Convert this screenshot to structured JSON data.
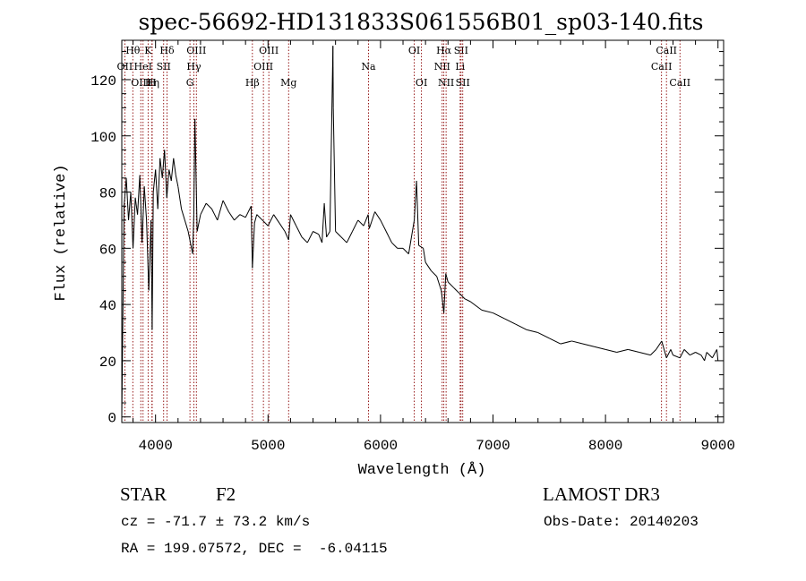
{
  "chart_data": {
    "type": "line",
    "title": "spec-56692-HD131833S061556B01_sp03-140.fits",
    "xlabel": "Wavelength (Å)",
    "ylabel": "Flux (relative)",
    "xlim": [
      3700,
      9050
    ],
    "ylim": [
      -2,
      134
    ],
    "xticks": [
      4000,
      5000,
      6000,
      7000,
      8000,
      9000
    ],
    "yticks": [
      0,
      20,
      40,
      60,
      80,
      100,
      120
    ],
    "series": [
      {
        "name": "flux",
        "x": [
          3700,
          3720,
          3740,
          3760,
          3780,
          3800,
          3820,
          3840,
          3860,
          3880,
          3900,
          3920,
          3940,
          3960,
          3970,
          3980,
          4000,
          4020,
          4040,
          4060,
          4080,
          4100,
          4120,
          4140,
          4160,
          4180,
          4200,
          4230,
          4260,
          4290,
          4310,
          4330,
          4340,
          4350,
          4370,
          4400,
          4450,
          4500,
          4550,
          4600,
          4650,
          4700,
          4750,
          4800,
          4850,
          4861,
          4880,
          4900,
          4950,
          5000,
          5050,
          5100,
          5150,
          5183,
          5200,
          5250,
          5300,
          5350,
          5400,
          5450,
          5480,
          5500,
          5520,
          5550,
          5577,
          5580,
          5600,
          5650,
          5700,
          5750,
          5800,
          5850,
          5890,
          5900,
          5950,
          6000,
          6050,
          6100,
          6150,
          6200,
          6250,
          6300,
          6320,
          6340,
          6380,
          6400,
          6450,
          6500,
          6540,
          6563,
          6580,
          6600,
          6650,
          6700,
          6750,
          6800,
          6900,
          7000,
          7100,
          7200,
          7300,
          7400,
          7500,
          7600,
          7700,
          7800,
          7900,
          8000,
          8100,
          8200,
          8300,
          8400,
          8450,
          8500,
          8542,
          8580,
          8600,
          8662,
          8700,
          8750,
          8800,
          8850,
          8880,
          8900,
          8950,
          8990,
          9000
        ],
        "values": [
          0,
          75,
          85,
          70,
          80,
          60,
          78,
          72,
          86,
          62,
          82,
          70,
          45,
          70,
          31,
          80,
          88,
          74,
          92,
          85,
          95,
          78,
          88,
          84,
          92,
          86,
          82,
          74,
          70,
          66,
          62,
          58,
          72,
          106,
          66,
          72,
          76,
          74,
          70,
          77,
          73,
          70,
          72,
          71,
          75,
          53,
          69,
          72,
          70,
          68,
          72,
          69,
          66,
          63,
          72,
          68,
          64,
          62,
          66,
          65,
          62,
          76,
          64,
          66,
          132,
          110,
          66,
          64,
          62,
          66,
          70,
          68,
          72,
          67,
          73,
          70,
          66,
          62,
          60,
          60,
          58,
          70,
          84,
          61,
          60,
          55,
          52,
          50,
          45,
          37,
          51,
          48,
          46,
          44,
          42,
          41,
          38,
          37,
          35,
          33,
          31,
          30,
          28,
          26,
          27,
          26,
          25,
          24,
          23,
          24,
          23,
          22,
          24,
          27,
          21,
          24,
          22,
          21,
          24,
          22,
          23,
          22,
          20,
          23,
          21,
          24,
          20
        ]
      }
    ],
    "lines": [
      {
        "name": "OII",
        "lam": 3727,
        "row": 1
      },
      {
        "name": "Hθ",
        "lam": 3798,
        "row": 0
      },
      {
        "name": "OIII",
        "lam": 3869,
        "row": 2
      },
      {
        "name": "HeI",
        "lam": 3889,
        "row": 1
      },
      {
        "name": "K",
        "lam": 3934,
        "row": 0
      },
      {
        "name": "Hη",
        "lam": 3970,
        "row": 2
      },
      {
        "name": "H",
        "lam": 3968,
        "row": 2
      },
      {
        "name": "SII",
        "lam": 4072,
        "row": 1
      },
      {
        "name": "Hδ",
        "lam": 4102,
        "row": 0
      },
      {
        "name": "G",
        "lam": 4306,
        "row": 2
      },
      {
        "name": "OIII",
        "lam": 4363,
        "row": 0
      },
      {
        "name": "Hγ",
        "lam": 4341,
        "row": 1
      },
      {
        "name": "Hβ",
        "lam": 4861,
        "row": 2
      },
      {
        "name": "OIII",
        "lam": 4959,
        "row": 1
      },
      {
        "name": "OIII",
        "lam": 5007,
        "row": 0
      },
      {
        "name": "Mg",
        "lam": 5183,
        "row": 2
      },
      {
        "name": "Na",
        "lam": 5893,
        "row": 1
      },
      {
        "name": "OI",
        "lam": 6300,
        "row": 0
      },
      {
        "name": "OI",
        "lam": 6364,
        "row": 2
      },
      {
        "name": "NII",
        "lam": 6548,
        "row": 1
      },
      {
        "name": "Hα",
        "lam": 6563,
        "row": 0
      },
      {
        "name": "NII",
        "lam": 6583,
        "row": 2
      },
      {
        "name": "Li",
        "lam": 6708,
        "row": 1
      },
      {
        "name": "SII",
        "lam": 6716,
        "row": 0
      },
      {
        "name": "SII",
        "lam": 6731,
        "row": 2
      },
      {
        "name": "CaII",
        "lam": 8498,
        "row": 1
      },
      {
        "name": "CaII",
        "lam": 8542,
        "row": 0
      },
      {
        "name": "CaII",
        "lam": 8662,
        "row": 2
      }
    ],
    "colors": {
      "axes": "#000000",
      "spectrum": "#000000",
      "lines": "#8b0000"
    }
  },
  "info": {
    "object_class": "STAR",
    "subclass": "F2",
    "redshift": "cz = -71.7 ± 73.2 km/s",
    "coords": "RA = 199.07572, DEC =  -6.04115",
    "survey": "LAMOST DR3",
    "obs_date": "Obs-Date: 20140203"
  }
}
